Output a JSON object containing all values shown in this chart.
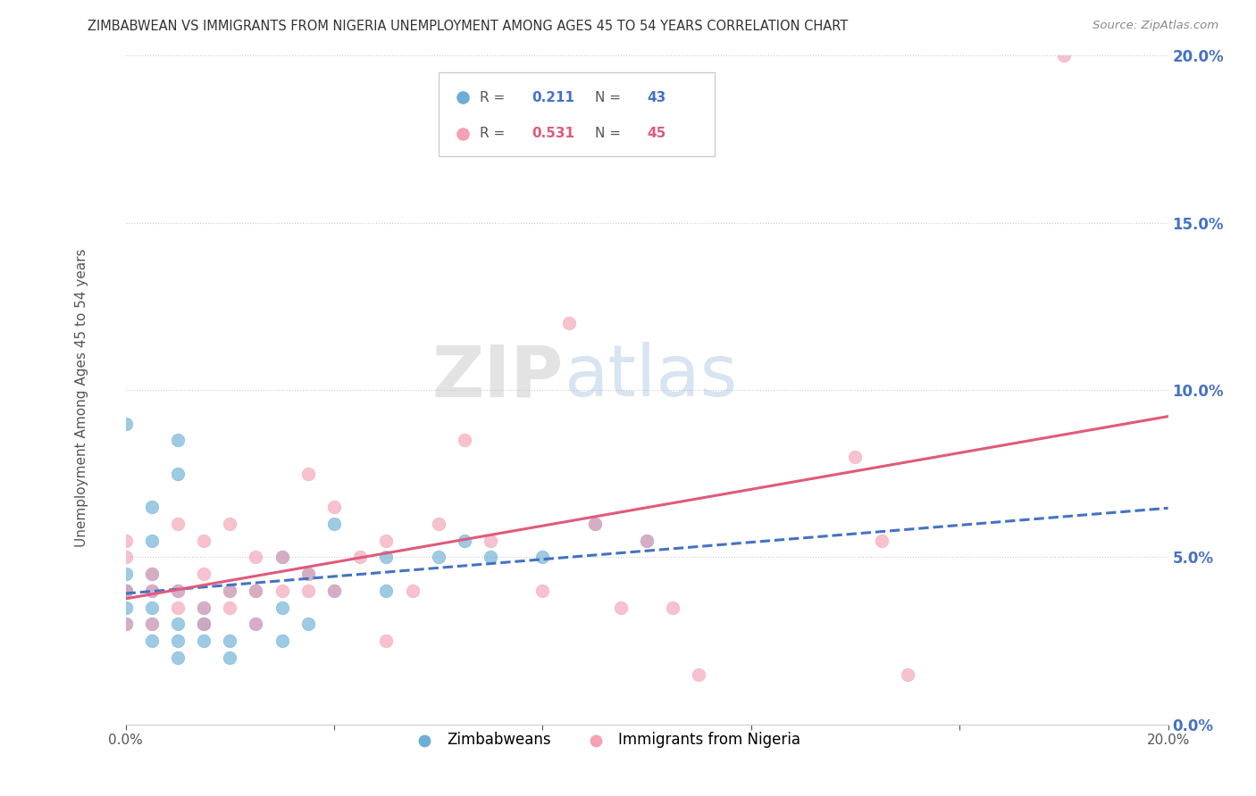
{
  "title": "ZIMBABWEAN VS IMMIGRANTS FROM NIGERIA UNEMPLOYMENT AMONG AGES 45 TO 54 YEARS CORRELATION CHART",
  "source": "Source: ZipAtlas.com",
  "ylabel": "Unemployment Among Ages 45 to 54 years",
  "xlim": [
    0,
    0.2
  ],
  "ylim": [
    0,
    0.2
  ],
  "xticks": [
    0.0,
    0.04,
    0.08,
    0.12,
    0.16,
    0.2
  ],
  "yticks": [
    0.0,
    0.05,
    0.1,
    0.15,
    0.2
  ],
  "xtick_labels": [
    "0.0%",
    "",
    "",
    "",
    "",
    "20.0%"
  ],
  "ytick_labels": [
    "0.0%",
    "5.0%",
    "10.0%",
    "15.0%",
    "20.0%"
  ],
  "zimbabwe_color": "#6baed6",
  "nigeria_color": "#f4a0b5",
  "zim_line_color": "#4472c4",
  "nig_line_color": "#e05a7a",
  "zimbabwe_R": "0.211",
  "zimbabwe_N": "43",
  "nigeria_R": "0.531",
  "nigeria_N": "45",
  "legend_label1": "Zimbabweans",
  "legend_label2": "Immigrants from Nigeria",
  "watermark": "ZIPatlas",
  "zimbabwe_x": [
    0.0,
    0.0,
    0.0,
    0.0,
    0.0,
    0.0,
    0.005,
    0.005,
    0.005,
    0.005,
    0.005,
    0.005,
    0.005,
    0.01,
    0.01,
    0.01,
    0.01,
    0.01,
    0.01,
    0.015,
    0.015,
    0.015,
    0.015,
    0.02,
    0.02,
    0.02,
    0.025,
    0.025,
    0.03,
    0.03,
    0.03,
    0.035,
    0.035,
    0.04,
    0.04,
    0.05,
    0.05,
    0.06,
    0.065,
    0.07,
    0.08,
    0.09,
    0.1
  ],
  "zimbabwe_y": [
    0.03,
    0.035,
    0.04,
    0.04,
    0.045,
    0.09,
    0.025,
    0.03,
    0.035,
    0.04,
    0.045,
    0.055,
    0.065,
    0.02,
    0.025,
    0.03,
    0.04,
    0.075,
    0.085,
    0.025,
    0.03,
    0.03,
    0.035,
    0.02,
    0.025,
    0.04,
    0.03,
    0.04,
    0.025,
    0.035,
    0.05,
    0.03,
    0.045,
    0.04,
    0.06,
    0.04,
    0.05,
    0.05,
    0.055,
    0.05,
    0.05,
    0.06,
    0.055
  ],
  "nigeria_x": [
    0.0,
    0.0,
    0.0,
    0.0,
    0.005,
    0.005,
    0.005,
    0.01,
    0.01,
    0.01,
    0.015,
    0.015,
    0.015,
    0.015,
    0.02,
    0.02,
    0.02,
    0.025,
    0.025,
    0.025,
    0.03,
    0.03,
    0.035,
    0.035,
    0.035,
    0.04,
    0.04,
    0.045,
    0.05,
    0.05,
    0.055,
    0.06,
    0.065,
    0.07,
    0.08,
    0.085,
    0.09,
    0.095,
    0.1,
    0.105,
    0.11,
    0.14,
    0.145,
    0.15,
    0.18
  ],
  "nigeria_y": [
    0.03,
    0.04,
    0.05,
    0.055,
    0.03,
    0.04,
    0.045,
    0.035,
    0.04,
    0.06,
    0.03,
    0.035,
    0.045,
    0.055,
    0.035,
    0.04,
    0.06,
    0.03,
    0.04,
    0.05,
    0.04,
    0.05,
    0.04,
    0.045,
    0.075,
    0.04,
    0.065,
    0.05,
    0.025,
    0.055,
    0.04,
    0.06,
    0.085,
    0.055,
    0.04,
    0.12,
    0.06,
    0.035,
    0.055,
    0.035,
    0.015,
    0.08,
    0.055,
    0.015,
    0.2
  ]
}
